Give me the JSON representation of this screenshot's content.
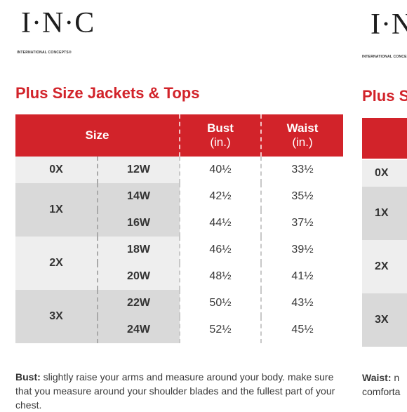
{
  "brand": {
    "logo_text": "I·N·C",
    "tagline": "INTERNATIONAL CONCEPTS®"
  },
  "colors": {
    "accent": "#d2232a",
    "band_light": "#eeeeee",
    "band_dark": "#d9d9d9"
  },
  "main": {
    "title": "Plus Size Jackets & Tops",
    "columns": {
      "size": "Size",
      "bust": "Bust",
      "bust_unit": "(in.)",
      "waist": "Waist",
      "waist_unit": "(in.)"
    },
    "rows": [
      {
        "plus": "0X",
        "w": "12W",
        "bust": "40½",
        "waist": "33½"
      },
      {
        "plus": "1X",
        "w": "14W",
        "bust": "42½",
        "waist": "35½"
      },
      {
        "plus": "",
        "w": "16W",
        "bust": "44½",
        "waist": "37½"
      },
      {
        "plus": "2X",
        "w": "18W",
        "bust": "46½",
        "waist": "39½"
      },
      {
        "plus": "",
        "w": "20W",
        "bust": "48½",
        "waist": "41½"
      },
      {
        "plus": "3X",
        "w": "22W",
        "bust": "50½",
        "waist": "43½"
      },
      {
        "plus": "",
        "w": "24W",
        "bust": "52½",
        "waist": "45½"
      }
    ],
    "note": {
      "label": "Bust:",
      "text": " slightly raise your arms and measure around your body. make sure that you measure around your shoulder blades and the fullest part of your chest."
    }
  },
  "second": {
    "title": "Plus S",
    "rows": [
      "0X",
      "1X",
      "2X",
      "3X"
    ],
    "note_label": "Waist:",
    "note_text": " n",
    "note_line2": "comforta"
  }
}
